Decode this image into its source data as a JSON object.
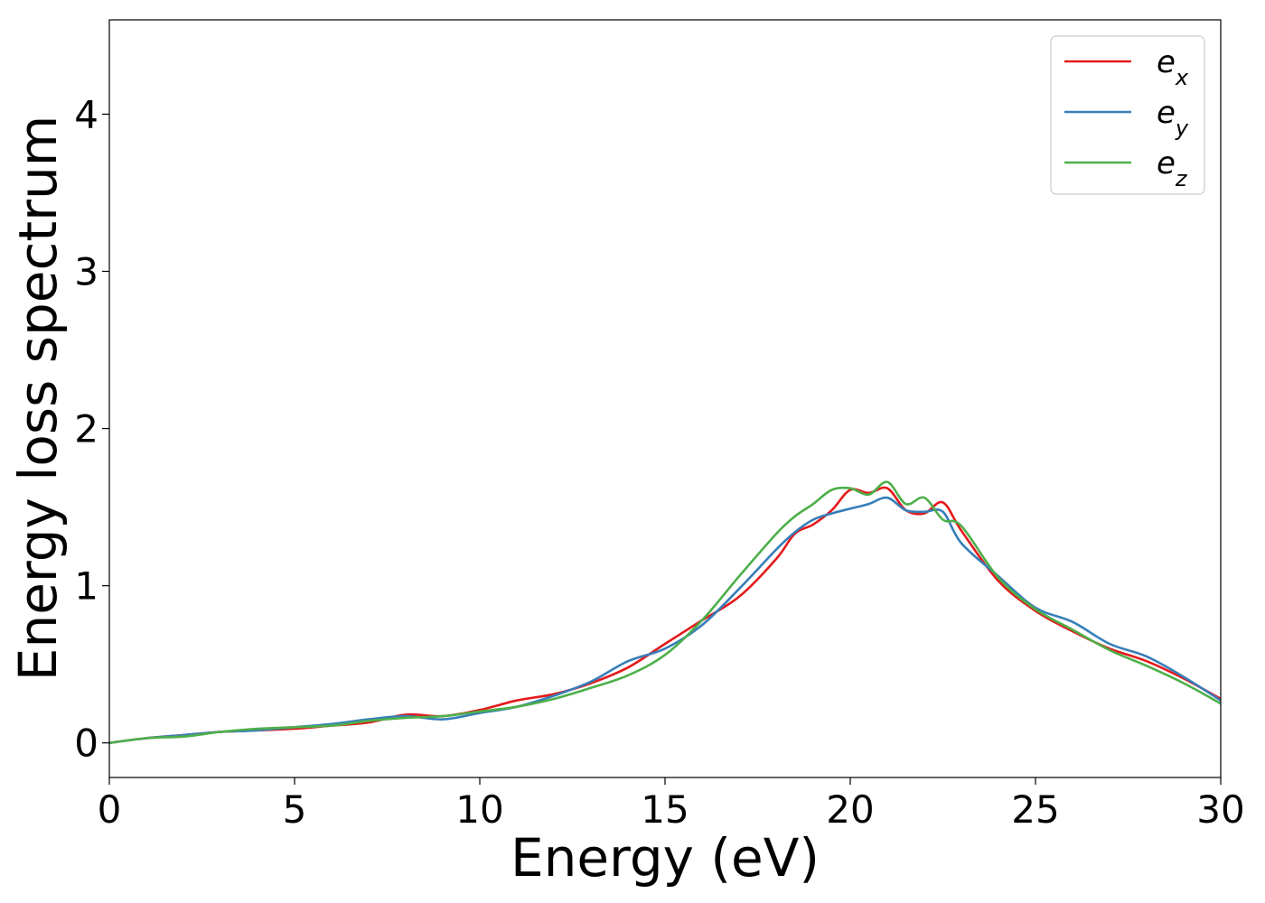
{
  "chart_data": {
    "type": "line",
    "title": "",
    "xlabel": "Energy (eV)",
    "ylabel": "Energy loss spectrum",
    "xlim": [
      0,
      30
    ],
    "ylim": [
      -0.22,
      4.6
    ],
    "xticks": [
      0,
      5,
      10,
      15,
      20,
      25,
      30
    ],
    "yticks": [
      0,
      1,
      2,
      3,
      4
    ],
    "grid": false,
    "legend_position": "top-right",
    "x": [
      0,
      1,
      2,
      3,
      4,
      5,
      6,
      7,
      8,
      9,
      10,
      11,
      12,
      13,
      14,
      15,
      16,
      17,
      18,
      18.5,
      19,
      19.5,
      20,
      20.5,
      21,
      21.5,
      22,
      22.5,
      23,
      24,
      25,
      26,
      27,
      28,
      29,
      30
    ],
    "series": [
      {
        "name": "e",
        "subscript": "x",
        "color": "#e41a1c",
        "values": [
          0.0,
          0.03,
          0.05,
          0.07,
          0.08,
          0.09,
          0.11,
          0.13,
          0.18,
          0.17,
          0.21,
          0.27,
          0.31,
          0.38,
          0.48,
          0.63,
          0.78,
          0.93,
          1.17,
          1.33,
          1.39,
          1.48,
          1.61,
          1.59,
          1.62,
          1.48,
          1.46,
          1.53,
          1.35,
          1.03,
          0.84,
          0.71,
          0.6,
          0.52,
          0.41,
          0.28
        ]
      },
      {
        "name": "e",
        "subscript": "y",
        "color": "#377eb8",
        "values": [
          0.0,
          0.03,
          0.05,
          0.07,
          0.08,
          0.1,
          0.12,
          0.15,
          0.17,
          0.15,
          0.19,
          0.23,
          0.3,
          0.39,
          0.52,
          0.6,
          0.75,
          0.98,
          1.23,
          1.34,
          1.42,
          1.46,
          1.49,
          1.52,
          1.56,
          1.48,
          1.47,
          1.47,
          1.27,
          1.06,
          0.86,
          0.77,
          0.63,
          0.55,
          0.42,
          0.27
        ]
      },
      {
        "name": "e",
        "subscript": "z",
        "color": "#4daf4a",
        "values": [
          0.0,
          0.03,
          0.04,
          0.07,
          0.09,
          0.1,
          0.11,
          0.14,
          0.16,
          0.17,
          0.2,
          0.23,
          0.28,
          0.35,
          0.43,
          0.56,
          0.78,
          1.06,
          1.33,
          1.44,
          1.52,
          1.61,
          1.62,
          1.58,
          1.66,
          1.52,
          1.56,
          1.42,
          1.38,
          1.05,
          0.85,
          0.72,
          0.59,
          0.49,
          0.38,
          0.25
        ]
      }
    ]
  }
}
